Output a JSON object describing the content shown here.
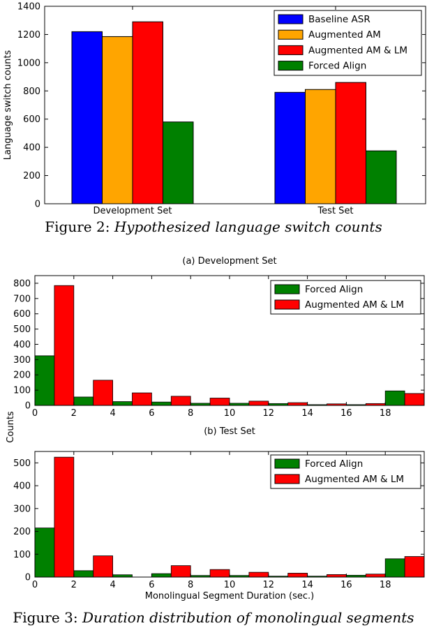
{
  "figure2": {
    "caption_label": "Figure 2:",
    "caption_text": "Hypothesized language switch counts"
  },
  "figure3": {
    "caption_label": "Figure 3:",
    "caption_text": "Duration distribution of monolingual segments",
    "shared_ylabel": "Counts"
  },
  "colors": {
    "blue": "#0000ff",
    "orange": "#ffa500",
    "red": "#ff0000",
    "green": "#008000"
  },
  "chart_data": [
    {
      "type": "bar",
      "title": "",
      "xlabel": "",
      "ylabel": "Language switch counts",
      "categories": [
        "Development Set",
        "Test Set"
      ],
      "ylim": [
        0,
        1400
      ],
      "yticks": [
        0,
        200,
        400,
        600,
        800,
        1000,
        1200,
        1400
      ],
      "legend_position": "top-right",
      "series": [
        {
          "name": "Baseline ASR",
          "color": "#0000ff",
          "values": [
            1220,
            790
          ]
        },
        {
          "name": "Augmented AM",
          "color": "#ffa500",
          "values": [
            1185,
            810
          ]
        },
        {
          "name": "Augmented AM & LM",
          "color": "#ff0000",
          "values": [
            1290,
            860
          ]
        },
        {
          "name": "Forced Align",
          "color": "#008000",
          "values": [
            580,
            375
          ]
        }
      ]
    },
    {
      "type": "bar",
      "title": "(a) Development Set",
      "xlabel": "",
      "ylabel": "Counts",
      "bin_starts": [
        0,
        2,
        4,
        6,
        8,
        10,
        12,
        14,
        16,
        18
      ],
      "xlim": [
        0,
        20
      ],
      "xticks": [
        0,
        2,
        4,
        6,
        8,
        10,
        12,
        14,
        16,
        18
      ],
      "ylim": [
        0,
        850
      ],
      "yticks": [
        0,
        100,
        200,
        300,
        400,
        500,
        600,
        700,
        800
      ],
      "legend_position": "top-right",
      "series": [
        {
          "name": "Forced Align",
          "color": "#008000",
          "values": [
            325,
            55,
            25,
            22,
            14,
            14,
            12,
            5,
            5,
            95
          ]
        },
        {
          "name": "Augmented AM & LM",
          "color": "#ff0000",
          "values": [
            785,
            165,
            82,
            60,
            48,
            28,
            18,
            10,
            12,
            78
          ]
        }
      ]
    },
    {
      "type": "bar",
      "title": "(b) Test Set",
      "xlabel": "Monolingual Segment Duration (sec.)",
      "ylabel": "Counts",
      "bin_starts": [
        0,
        2,
        4,
        6,
        8,
        10,
        12,
        14,
        16,
        18
      ],
      "xlim": [
        0,
        20
      ],
      "xticks": [
        0,
        2,
        4,
        6,
        8,
        10,
        12,
        14,
        16,
        18
      ],
      "ylim": [
        0,
        550
      ],
      "yticks": [
        0,
        100,
        200,
        300,
        400,
        500
      ],
      "legend_position": "top-right",
      "series": [
        {
          "name": "Forced Align",
          "color": "#008000",
          "values": [
            215,
            28,
            10,
            15,
            7,
            7,
            4,
            4,
            8,
            80
          ]
        },
        {
          "name": "Augmented AM & LM",
          "color": "#ff0000",
          "values": [
            525,
            93,
            0,
            50,
            33,
            21,
            17,
            11,
            13,
            90
          ]
        }
      ]
    }
  ]
}
